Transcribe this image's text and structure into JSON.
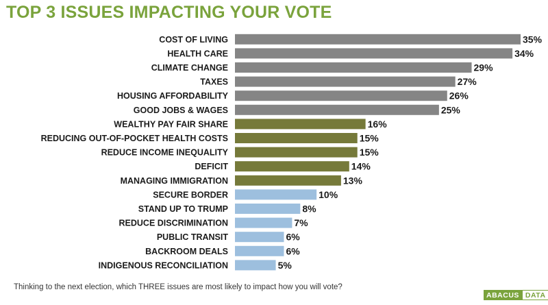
{
  "header": {
    "title": "TOP 3 ISSUES IMPACTING YOUR VOTE"
  },
  "footer": {
    "question": "Thinking to the next election, which THREE issues are most likely to impact how you will vote?",
    "logo_part1": "ABACUS",
    "logo_part2": "DATA"
  },
  "colors": {
    "title": "#7aa33c",
    "group_top": "#858585",
    "group_mid": "#767a3a",
    "group_low": "#9dbfde"
  },
  "chart_data": {
    "type": "bar",
    "orientation": "horizontal",
    "title": "TOP 3 ISSUES IMPACTING YOUR VOTE",
    "categories": [
      "COST OF LIVING",
      "HEALTH CARE",
      "CLIMATE CHANGE",
      "TAXES",
      "HOUSING AFFORDABILITY",
      "GOOD JOBS & WAGES",
      "WEALTHY PAY FAIR SHARE",
      "REDUCING OUT-OF-POCKET HEALTH COSTS",
      "REDUCE INCOME INEQUALITY",
      "DEFICIT",
      "MANAGING IMMIGRATION",
      "SECURE BORDER",
      "STAND UP TO TRUMP",
      "REDUCE DISCRIMINATION",
      "PUBLIC TRANSIT",
      "BACKROOM DEALS",
      "INDIGENOUS RECONCILIATION"
    ],
    "values": [
      35,
      34,
      29,
      27,
      26,
      25,
      16,
      15,
      15,
      14,
      13,
      10,
      8,
      7,
      6,
      6,
      5
    ],
    "value_labels": [
      "35%",
      "34%",
      "29%",
      "27%",
      "26%",
      "25%",
      "16%",
      "15%",
      "15%",
      "14%",
      "13%",
      "10%",
      "8%",
      "7%",
      "6%",
      "6%",
      "5%"
    ],
    "color_groups": [
      "top",
      "top",
      "top",
      "top",
      "top",
      "top",
      "mid",
      "mid",
      "mid",
      "mid",
      "mid",
      "low",
      "low",
      "low",
      "low",
      "low",
      "low"
    ],
    "unit": "%",
    "xlim": [
      0,
      35
    ],
    "grid": false,
    "legend": "none"
  }
}
